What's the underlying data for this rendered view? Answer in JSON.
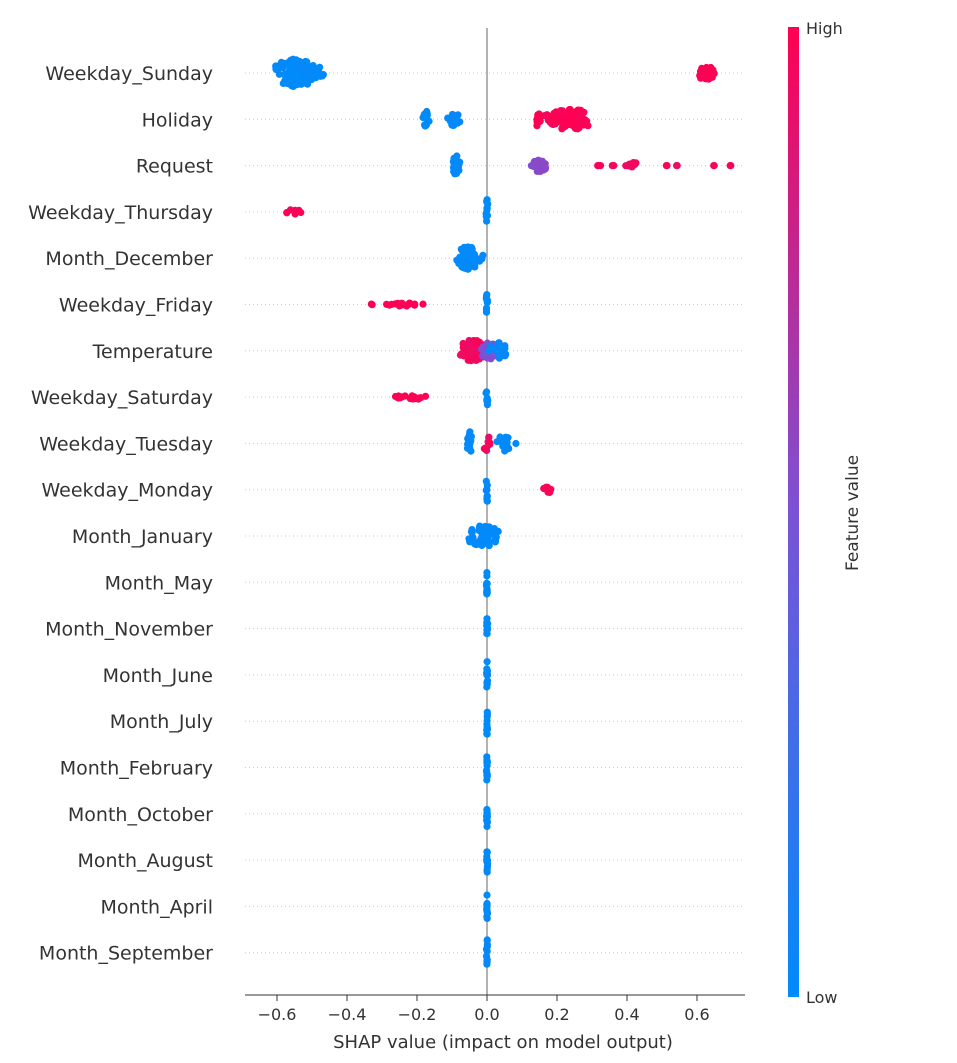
{
  "chart_data": {
    "type": "scatter",
    "subtype": "shap-beeswarm",
    "title": "",
    "xlabel": "SHAP value (impact on model output)",
    "ylabel": "",
    "xlim": [
      -0.68,
      0.76
    ],
    "xticks": [
      -0.6,
      -0.4,
      -0.2,
      0.0,
      0.2,
      0.4,
      0.6
    ],
    "xtick_labels": [
      "−0.6",
      "−0.4",
      "−0.2",
      "0.0",
      "0.2",
      "0.4",
      "0.6"
    ],
    "colorbar": {
      "title": "Feature value",
      "high_label": "High",
      "low_label": "Low",
      "high_color": "#ff0052",
      "low_color": "#008bfb"
    },
    "features": [
      {
        "name": "Weekday_Sunday",
        "groups": [
          {
            "min": -0.61,
            "max": -0.46,
            "center": -0.55,
            "n": 140,
            "spread": 1.0,
            "color": 0.0
          },
          {
            "min": 0.605,
            "max": 0.655,
            "center": 0.625,
            "n": 35,
            "spread": 0.55,
            "color": 1.0
          }
        ]
      },
      {
        "name": "Holiday",
        "groups": [
          {
            "min": -0.185,
            "max": -0.165,
            "center": -0.175,
            "n": 14,
            "spread": 0.6,
            "color": 0.0
          },
          {
            "min": -0.115,
            "max": -0.075,
            "center": -0.095,
            "n": 18,
            "spread": 0.45,
            "color": 0.0
          },
          {
            "min": 0.14,
            "max": 0.155,
            "center": 0.145,
            "n": 14,
            "spread": 0.55,
            "color": 1.0
          },
          {
            "min": 0.16,
            "max": 0.305,
            "center": 0.24,
            "n": 95,
            "spread": 0.75,
            "color": 1.0
          }
        ]
      },
      {
        "name": "Request",
        "groups": [
          {
            "min": -0.1,
            "max": -0.075,
            "center": -0.088,
            "n": 30,
            "spread": 0.7,
            "color": 0.0
          },
          {
            "min": 0.125,
            "max": 0.175,
            "center": 0.15,
            "n": 40,
            "spread": 0.45,
            "color": 0.55
          },
          {
            "min": 0.315,
            "max": 0.33,
            "center": 0.32,
            "n": 3,
            "spread": 0.0,
            "color": 0.95
          },
          {
            "min": 0.35,
            "max": 0.37,
            "center": 0.36,
            "n": 2,
            "spread": 0.0,
            "color": 0.95
          },
          {
            "min": 0.395,
            "max": 0.435,
            "center": 0.415,
            "n": 8,
            "spread": 0.25,
            "color": 0.95
          },
          {
            "min": 0.51,
            "max": 0.515,
            "center": 0.512,
            "n": 2,
            "spread": 0.0,
            "color": 0.95
          },
          {
            "min": 0.54,
            "max": 0.545,
            "center": 0.542,
            "n": 2,
            "spread": 0.0,
            "color": 0.95
          },
          {
            "min": 0.64,
            "max": 0.66,
            "center": 0.65,
            "n": 2,
            "spread": 0.0,
            "color": 0.95
          },
          {
            "min": 0.69,
            "max": 0.7,
            "center": 0.695,
            "n": 2,
            "spread": 0.0,
            "color": 0.95
          }
        ]
      },
      {
        "name": "Weekday_Thursday",
        "groups": [
          {
            "min": -0.58,
            "max": -0.52,
            "center": -0.55,
            "n": 8,
            "spread": 0.18,
            "color": 1.0
          },
          {
            "min": -0.003,
            "max": 0.003,
            "center": 0.0,
            "n": 10,
            "spread": 0.9,
            "color": 0.0
          }
        ]
      },
      {
        "name": "Month_December",
        "groups": [
          {
            "min": -0.095,
            "max": -0.01,
            "center": -0.055,
            "n": 60,
            "spread": 0.8,
            "color": 0.0
          }
        ]
      },
      {
        "name": "Weekday_Friday",
        "groups": [
          {
            "min": -0.34,
            "max": -0.16,
            "center": -0.22,
            "n": 22,
            "spread": 0.12,
            "color": 1.0
          },
          {
            "min": -0.003,
            "max": 0.003,
            "center": 0.0,
            "n": 10,
            "spread": 0.9,
            "color": 0.0
          }
        ]
      },
      {
        "name": "Temperature",
        "groups": [
          {
            "min": -0.09,
            "max": 0.0,
            "center": -0.04,
            "n": 60,
            "spread": 0.75,
            "color": 0.95
          },
          {
            "min": -0.02,
            "max": 0.03,
            "center": 0.005,
            "n": 25,
            "spread": 0.6,
            "color": 0.5
          },
          {
            "min": 0.0,
            "max": 0.07,
            "center": 0.03,
            "n": 30,
            "spread": 0.6,
            "color": 0.02
          }
        ]
      },
      {
        "name": "Weekday_Saturday",
        "groups": [
          {
            "min": -0.28,
            "max": -0.165,
            "center": -0.21,
            "n": 16,
            "spread": 0.15,
            "color": 1.0
          },
          {
            "min": -0.003,
            "max": 0.003,
            "center": 0.0,
            "n": 10,
            "spread": 0.9,
            "color": 0.0
          }
        ]
      },
      {
        "name": "Weekday_Tuesday",
        "groups": [
          {
            "min": -0.06,
            "max": -0.04,
            "center": -0.05,
            "n": 16,
            "spread": 0.85,
            "color": 0.0
          },
          {
            "min": -0.01,
            "max": 0.015,
            "center": 0.0,
            "n": 10,
            "spread": 0.55,
            "color": 0.95
          },
          {
            "min": 0.02,
            "max": 0.085,
            "center": 0.045,
            "n": 16,
            "spread": 0.55,
            "color": 0.0
          }
        ]
      },
      {
        "name": "Weekday_Monday",
        "groups": [
          {
            "min": -0.003,
            "max": 0.003,
            "center": 0.0,
            "n": 10,
            "spread": 0.9,
            "color": 0.0
          },
          {
            "min": 0.16,
            "max": 0.19,
            "center": 0.175,
            "n": 9,
            "spread": 0.2,
            "color": 1.0
          }
        ]
      },
      {
        "name": "Month_January",
        "groups": [
          {
            "min": -0.065,
            "max": 0.04,
            "center": -0.01,
            "n": 60,
            "spread": 0.75,
            "color": 0.0
          }
        ]
      },
      {
        "name": "Month_May",
        "groups": [
          {
            "min": -0.002,
            "max": 0.002,
            "center": 0.0,
            "n": 12,
            "spread": 0.95,
            "color": 0.0
          }
        ]
      },
      {
        "name": "Month_November",
        "groups": [
          {
            "min": -0.002,
            "max": 0.002,
            "center": 0.0,
            "n": 12,
            "spread": 0.95,
            "color": 0.0
          }
        ]
      },
      {
        "name": "Month_June",
        "groups": [
          {
            "min": -0.002,
            "max": 0.002,
            "center": 0.0,
            "n": 12,
            "spread": 0.95,
            "color": 0.0
          }
        ]
      },
      {
        "name": "Month_July",
        "groups": [
          {
            "min": -0.002,
            "max": 0.002,
            "center": 0.0,
            "n": 12,
            "spread": 0.95,
            "color": 0.0
          }
        ]
      },
      {
        "name": "Month_February",
        "groups": [
          {
            "min": -0.002,
            "max": 0.002,
            "center": 0.0,
            "n": 12,
            "spread": 0.95,
            "color": 0.0
          }
        ]
      },
      {
        "name": "Month_October",
        "groups": [
          {
            "min": -0.002,
            "max": 0.002,
            "center": 0.0,
            "n": 12,
            "spread": 0.95,
            "color": 0.0
          }
        ]
      },
      {
        "name": "Month_August",
        "groups": [
          {
            "min": -0.002,
            "max": 0.002,
            "center": 0.0,
            "n": 12,
            "spread": 0.95,
            "color": 0.0
          }
        ]
      },
      {
        "name": "Month_April",
        "groups": [
          {
            "min": -0.002,
            "max": 0.002,
            "center": 0.0,
            "n": 12,
            "spread": 0.95,
            "color": 0.0
          }
        ]
      },
      {
        "name": "Month_September",
        "groups": [
          {
            "min": -0.002,
            "max": 0.002,
            "center": 0.0,
            "n": 12,
            "spread": 0.95,
            "color": 0.0
          }
        ]
      }
    ]
  }
}
